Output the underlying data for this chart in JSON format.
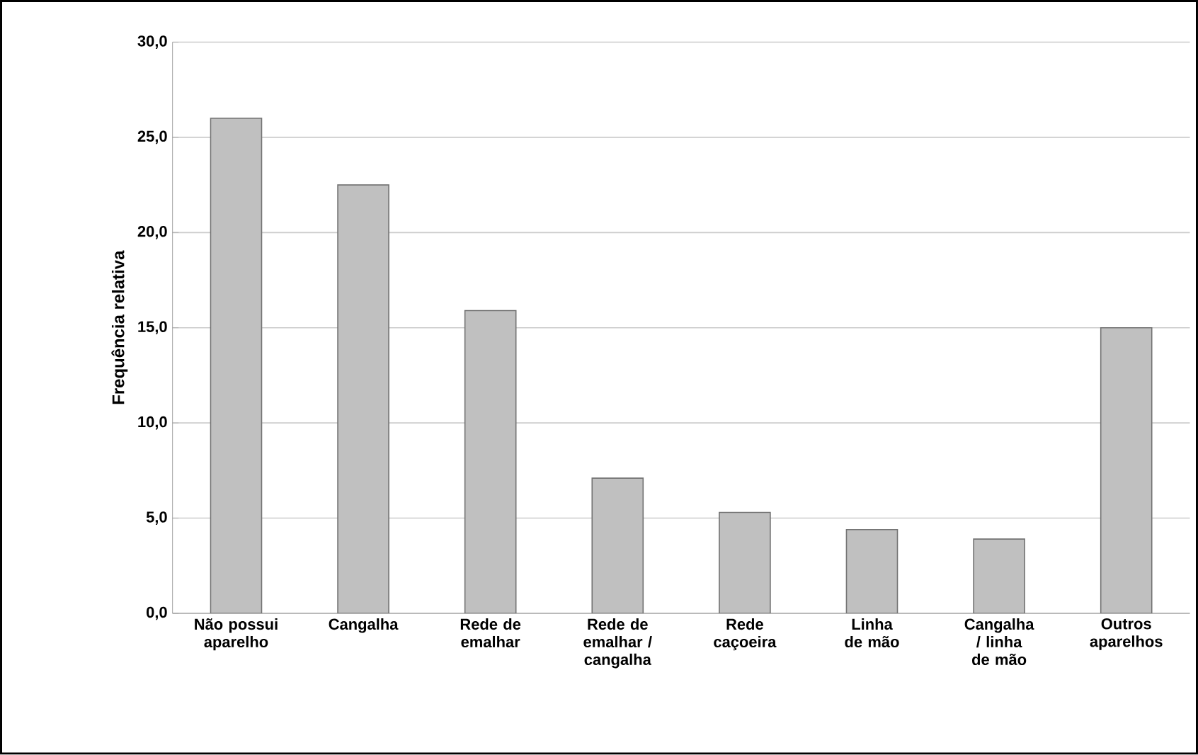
{
  "chart_data": {
    "type": "bar",
    "ylabel": "Frequência relativa",
    "categories": [
      "Não possui aparelho",
      "Cangalha",
      "Rede de emalhar",
      "Rede de emalhar / cangalha",
      "Rede caçoeira",
      "Linha de mão",
      "Cangalha / linha de mão",
      "Outros aparelhos"
    ],
    "values": [
      26.0,
      22.5,
      15.9,
      7.1,
      5.3,
      4.4,
      3.9,
      15.0
    ],
    "color": "#c0c0c0",
    "ylim": [
      0,
      30
    ],
    "yticks": [
      {
        "value": 0,
        "label": "0,0"
      },
      {
        "value": 5,
        "label": "5,0"
      },
      {
        "value": 10,
        "label": "10,0"
      },
      {
        "value": 15,
        "label": "15,0"
      },
      {
        "value": 20,
        "label": "20,0"
      },
      {
        "value": 25,
        "label": "25,0"
      },
      {
        "value": 30,
        "label": "30,0"
      }
    ],
    "grid": "y"
  }
}
